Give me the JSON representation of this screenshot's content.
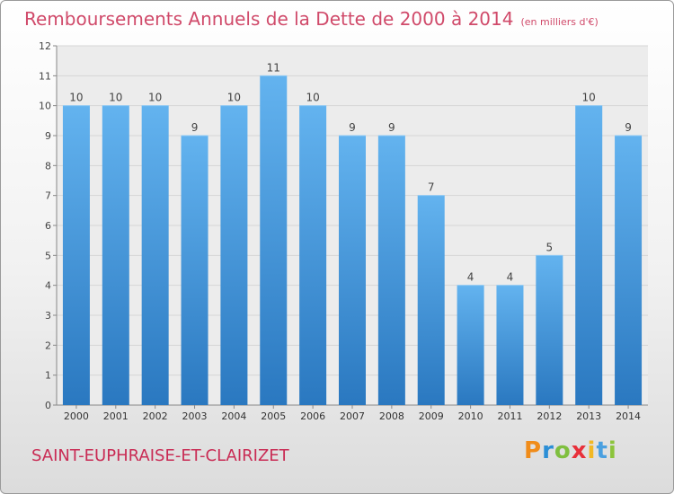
{
  "title": "Remboursements Annuels de la Dette de 2000 à 2014",
  "unit": "(en milliers d'€)",
  "commune": "SAINT-EUPHRAISE-ET-CLAIRIZET",
  "logo": {
    "letters": [
      "P",
      "r",
      "o",
      "x",
      "i",
      "t",
      "i"
    ],
    "colors": [
      "#f08c1a",
      "#2c8fd6",
      "#7fbf3f",
      "#e8303a",
      "#f2b824",
      "#4aa0e0",
      "#8cc43c"
    ]
  },
  "colors": {
    "bar": "#4a9ee0",
    "bar_light": "#63b3ef",
    "bar_dark": "#2a78c0",
    "title": "#d04a6a"
  },
  "chart_data": {
    "type": "bar",
    "categories": [
      "2000",
      "2001",
      "2002",
      "2003",
      "2004",
      "2005",
      "2006",
      "2007",
      "2008",
      "2009",
      "2010",
      "2011",
      "2012",
      "2013",
      "2014"
    ],
    "values": [
      10,
      10,
      10,
      9,
      10,
      11,
      10,
      9,
      9,
      7,
      4,
      4,
      5,
      10,
      9
    ],
    "yticks": [
      0,
      1,
      2,
      3,
      4,
      5,
      6,
      7,
      8,
      9,
      10,
      11,
      12
    ],
    "ylim": [
      0,
      12
    ],
    "grid": true
  }
}
